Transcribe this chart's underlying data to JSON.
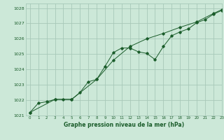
{
  "title": "Graphe pression niveau de la mer (hPa)",
  "background_color": "#cce8d8",
  "grid_color": "#a8c8b8",
  "line_color": "#1a5c2a",
  "xlim": [
    -0.5,
    23
  ],
  "ylim": [
    1021,
    1028.3
  ],
  "xticks": [
    0,
    1,
    2,
    3,
    4,
    5,
    6,
    7,
    8,
    9,
    10,
    11,
    12,
    13,
    14,
    15,
    16,
    17,
    18,
    19,
    20,
    21,
    22,
    23
  ],
  "yticks": [
    1021,
    1022,
    1023,
    1024,
    1025,
    1026,
    1027,
    1028
  ],
  "series1_x": [
    0,
    1,
    2,
    3,
    4,
    5,
    6,
    7,
    8,
    9,
    10,
    11,
    12,
    13,
    14,
    15,
    16,
    17,
    18,
    19,
    20,
    21,
    22,
    23
  ],
  "series1_y": [
    1021.2,
    1021.8,
    1021.9,
    1022.05,
    1022.05,
    1022.05,
    1022.5,
    1023.2,
    1023.35,
    1024.2,
    1025.1,
    1025.4,
    1025.4,
    1025.15,
    1025.05,
    1024.65,
    1025.5,
    1026.2,
    1026.45,
    1026.65,
    1027.05,
    1027.25,
    1027.6,
    1027.85
  ],
  "series2_x": [
    0,
    3,
    5,
    8,
    10,
    12,
    14,
    16,
    18,
    20,
    22,
    23
  ],
  "series2_y": [
    1021.2,
    1022.05,
    1022.05,
    1023.35,
    1024.6,
    1025.5,
    1026.0,
    1026.35,
    1026.75,
    1027.1,
    1027.65,
    1027.9
  ]
}
